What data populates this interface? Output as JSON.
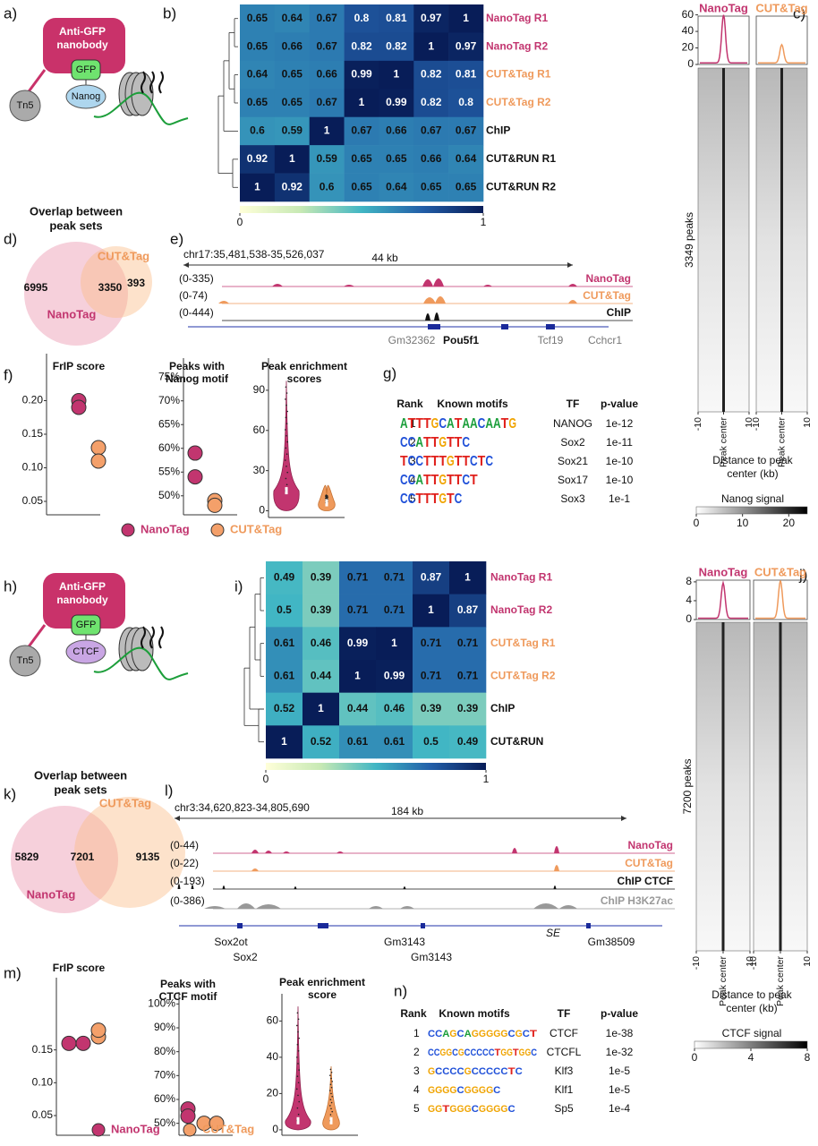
{
  "a": {
    "label": "a)",
    "nanobody": [
      "Anti-GFP",
      "nanobody"
    ],
    "gfp": "GFP",
    "target": "Nanog",
    "tn5": "Tn5"
  },
  "b": {
    "label": "b)",
    "rows": [
      {
        "name": "NanoTag R1",
        "color": "#c2356f",
        "values": [
          0.65,
          0.64,
          0.67,
          0.8,
          0.81,
          0.97,
          1
        ]
      },
      {
        "name": "NanoTag R2",
        "color": "#c2356f",
        "values": [
          0.65,
          0.66,
          0.67,
          0.82,
          0.82,
          1,
          0.97
        ]
      },
      {
        "name": "CUT&Tag R1",
        "color": "#ef9a5c",
        "values": [
          0.64,
          0.65,
          0.66,
          0.99,
          1,
          0.82,
          0.81
        ]
      },
      {
        "name": "CUT&Tag R2",
        "color": "#ef9a5c",
        "values": [
          0.65,
          0.65,
          0.67,
          1,
          0.99,
          0.82,
          0.8
        ]
      },
      {
        "name": "ChIP",
        "color": "#111111",
        "values": [
          0.6,
          0.59,
          1,
          0.67,
          0.66,
          0.67,
          0.67
        ]
      },
      {
        "name": "CUT&RUN R1",
        "color": "#111111",
        "values": [
          0.92,
          1,
          0.59,
          0.65,
          0.65,
          0.66,
          0.64
        ]
      },
      {
        "name": "CUT&RUN R2",
        "color": "#111111",
        "values": [
          1,
          0.92,
          0.6,
          0.65,
          0.64,
          0.65,
          0.65
        ]
      }
    ],
    "colorbar": {
      "ticks": [
        0,
        1
      ]
    }
  },
  "c": {
    "label": "c)",
    "columns": [
      "NanoTag",
      "CUT&Tag"
    ],
    "colors": [
      "#c2356f",
      "#ef9a5c"
    ],
    "ylim": [
      0,
      65
    ],
    "yticks": [
      0,
      20,
      40,
      60
    ],
    "peak_height": [
      58,
      22
    ],
    "peaks": "3349 peaks",
    "xlim": [
      -10,
      10
    ],
    "xticks": [
      -10,
      {
        "value": 0,
        "label": "Peak center"
      },
      10
    ],
    "xlabel": [
      "Distance to peak",
      "center (kb)"
    ],
    "signal": {
      "title": "Nanog signal",
      "lim": [
        0,
        24
      ],
      "ticks": [
        0,
        10,
        20
      ]
    }
  },
  "d": {
    "label": "d)",
    "title": [
      "Overlap between",
      "peak sets"
    ],
    "sets": [
      "NanoTag",
      "CUT&Tag"
    ],
    "counts": [
      6995,
      3350,
      393
    ]
  },
  "e": {
    "label": "e)",
    "locus": "chr17:35,481,538-35,526,037",
    "scale": "44 kb",
    "tracks": [
      {
        "name": "NanoTag",
        "range": "(0-335)",
        "color": "#c2356f"
      },
      {
        "name": "CUT&Tag",
        "range": "(0-74)",
        "color": "#ef9a5c"
      },
      {
        "name": "ChIP",
        "range": "(0-444)",
        "color": "#111111"
      }
    ],
    "genes": [
      "Gm32362",
      "Pou5f1",
      "Tcf19",
      "Cchcr1"
    ]
  },
  "f": {
    "label": "f)",
    "frip": {
      "title": [
        "FrIP score"
      ],
      "ylim": [
        0.03,
        0.27
      ],
      "yticks": [
        0.05,
        {
          "value": 0.1,
          "label": "0.10"
        },
        0.15,
        {
          "value": 0.2,
          "label": "0.20"
        }
      ],
      "nanotag": [
        0.2,
        0.19
      ],
      "cuttag": [
        0.13,
        0.11
      ]
    },
    "motif": {
      "title": [
        "Peaks with",
        "Nanog motif"
      ],
      "ylim": [
        46,
        79
      ],
      "yticks": [
        {
          "value": 50,
          "label": "50%"
        },
        {
          "value": 55,
          "label": "55%"
        },
        {
          "value": 60,
          "label": "60%"
        },
        {
          "value": 65,
          "label": "65%"
        },
        {
          "value": 70,
          "label": "70%"
        },
        {
          "value": 75,
          "label": "75%"
        }
      ],
      "nanotag": [
        59,
        54
      ],
      "cuttag": [
        49,
        48
      ]
    },
    "enrich": {
      "title": [
        "Peak enrichment",
        "scores"
      ],
      "ylim": [
        -5,
        114
      ],
      "yticks": [
        0,
        30,
        60,
        90
      ],
      "max": [
        97,
        12
      ],
      "median": [
        15,
        6
      ]
    },
    "legend": [
      "NanoTag",
      "CUT&Tag"
    ]
  },
  "g": {
    "label": "g)",
    "headers": [
      "Rank",
      "Known motifs",
      "TF",
      "p-value"
    ],
    "rows": [
      {
        "rank": 1,
        "motif": "ATTTGCATAACAATG",
        "tf": "NANOG",
        "p": "1e-12"
      },
      {
        "rank": 2,
        "motif": "CCATTGTTC",
        "tf": "Sox2",
        "p": "1e-11"
      },
      {
        "rank": 3,
        "motif": "TCCTTTGTTCTC",
        "tf": "Sox21",
        "p": "1e-10"
      },
      {
        "rank": 4,
        "motif": "CCATTGTTCT",
        "tf": "Sox17",
        "p": "1e-10"
      },
      {
        "rank": 5,
        "motif": "CCTTTGTC",
        "tf": "Sox3",
        "p": "1e-1"
      }
    ]
  },
  "h": {
    "label": "h)",
    "nanobody": [
      "Anti-GFP",
      "nanobody"
    ],
    "gfp": "GFP",
    "target": "CTCF",
    "tn5": "Tn5"
  },
  "i": {
    "label": "i)",
    "rows": [
      {
        "name": "NanoTag R1",
        "color": "#c2356f",
        "values": [
          0.49,
          0.39,
          0.71,
          0.71,
          0.87,
          1
        ]
      },
      {
        "name": "NanoTag R2",
        "color": "#c2356f",
        "values": [
          0.5,
          0.39,
          0.71,
          0.71,
          1,
          0.87
        ]
      },
      {
        "name": "CUT&Tag R1",
        "color": "#ef9a5c",
        "values": [
          0.61,
          0.46,
          0.99,
          1,
          0.71,
          0.71
        ]
      },
      {
        "name": "CUT&Tag R2",
        "color": "#ef9a5c",
        "values": [
          0.61,
          0.44,
          1,
          0.99,
          0.71,
          0.71
        ]
      },
      {
        "name": "ChIP",
        "color": "#111111",
        "values": [
          0.52,
          1,
          0.44,
          0.46,
          0.39,
          0.39
        ]
      },
      {
        "name": "CUT&RUN",
        "color": "#111111",
        "values": [
          1,
          0.52,
          0.61,
          0.61,
          0.5,
          0.49
        ]
      }
    ],
    "colorbar": {
      "ticks": [
        0,
        1
      ]
    }
  },
  "j": {
    "label": "j)",
    "columns": [
      "NanoTag",
      "CUT&Tag"
    ],
    "colors": [
      "#c2356f",
      "#ef9a5c"
    ],
    "ylim": [
      0,
      9.5
    ],
    "yticks": [
      0,
      4,
      8
    ],
    "peak_height": [
      7.5,
      8
    ],
    "peaks": "7200 peaks",
    "xlim": [
      -10,
      10
    ],
    "xticks": [
      -10,
      {
        "value": 0,
        "label": "Peak center"
      },
      10
    ],
    "xlabel": [
      "Distance to peak",
      "center (kb)"
    ],
    "signal": {
      "title": "CTCF signal",
      "lim": [
        0,
        8
      ],
      "ticks": [
        0,
        4,
        8
      ]
    }
  },
  "k": {
    "label": "k)",
    "title": [
      "Overlap between",
      "peak sets"
    ],
    "sets": [
      "NanoTag",
      "CUT&Tag"
    ],
    "counts": [
      5829,
      7201,
      9135
    ]
  },
  "l": {
    "label": "l)",
    "locus": "chr3:34,620,823-34,805,690",
    "scale": "184 kb",
    "tracks": [
      {
        "name": "NanoTag",
        "range": "(0-44)",
        "color": "#c2356f"
      },
      {
        "name": "CUT&Tag",
        "range": "(0-22)",
        "color": "#ef9a5c"
      },
      {
        "name": "ChIP CTCF",
        "range": "(0-193)",
        "color": "#111111"
      },
      {
        "name": "ChIP H3K27ac",
        "range": "(0-386)",
        "color": "#999999"
      }
    ],
    "genes": [
      "Sox2ot",
      "Sox2",
      "Gm3143",
      "Gm3143",
      "SE",
      "Gm38509"
    ]
  },
  "m": {
    "label": "m)",
    "frip": {
      "title": [
        "FrIP score"
      ],
      "ylim": [
        0.02,
        0.26
      ],
      "yticks": [
        0.05,
        {
          "value": 0.1,
          "label": "0.10"
        },
        0.15
      ],
      "nanotag": [
        0.16,
        0.16
      ],
      "cuttag": [
        0.17,
        0.18
      ]
    },
    "motif": {
      "title": [
        "Peaks with",
        "CTCF motif"
      ],
      "ylim": [
        45,
        105
      ],
      "yticks": [
        {
          "value": 50,
          "label": "50%"
        },
        {
          "value": 60,
          "label": "60%"
        },
        {
          "value": 70,
          "label": "70%"
        },
        {
          "value": 80,
          "label": "80%"
        },
        {
          "value": 90,
          "label": "90%"
        },
        {
          "value": 100,
          "label": "100%"
        }
      ],
      "nanotag": [
        56,
        53
      ],
      "cuttag": [
        50,
        50
      ]
    },
    "enrich": {
      "title": [
        "Peak enrichment",
        "score"
      ],
      "ylim": [
        -3,
        75
      ],
      "yticks": [
        0,
        20,
        40,
        60
      ],
      "max": [
        68,
        35
      ],
      "median": [
        5,
        5
      ]
    },
    "legend": [
      "NanoTag",
      "CUT&Tag"
    ]
  },
  "n": {
    "label": "n)",
    "headers": [
      "Rank",
      "Known motifs",
      "TF",
      "p-value"
    ],
    "rows": [
      {
        "rank": 1,
        "motif": "CCAGCAGGGGGCGCT",
        "tf": "CTCF",
        "p": "1e-38"
      },
      {
        "rank": 2,
        "motif": "CCGGCGCCCCCTGGTGGC",
        "tf": "CTCFL",
        "p": "1e-32"
      },
      {
        "rank": 3,
        "motif": "GCCCCGCCCCCTC",
        "tf": "Klf3",
        "p": "1e-5"
      },
      {
        "rank": 4,
        "motif": "GGGGCGGGGC",
        "tf": "Klf1",
        "p": "1e-5"
      },
      {
        "rank": 5,
        "motif": "GGTGGGCGGGGC",
        "tf": "Sp5",
        "p": "1e-4"
      }
    ]
  }
}
